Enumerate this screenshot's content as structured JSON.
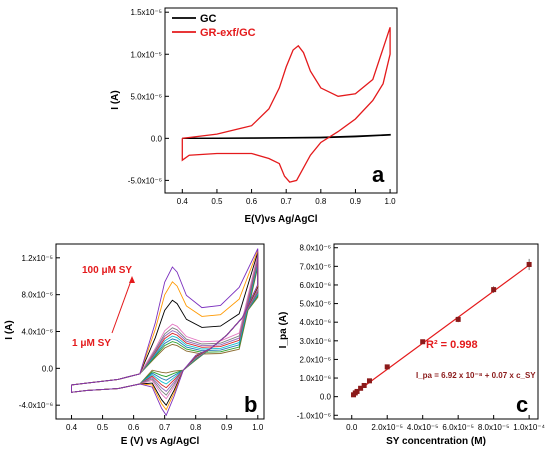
{
  "chart_data": [
    {
      "id": "a",
      "type": "line",
      "panel_label": "a",
      "xlabel": "E(V)vs Ag/AgCl",
      "ylabel": "I (A)",
      "xlim": [
        0.35,
        1.02
      ],
      "ylim": [
        -6.5e-06,
        1.55e-05
      ],
      "xticks": [
        0.4,
        0.5,
        0.6,
        0.7,
        0.8,
        0.9,
        1.0
      ],
      "xtick_labels": [
        "0.4",
        "0.5",
        "0.6",
        "0.7",
        "0.8",
        "0.9",
        "1.0"
      ],
      "yticks": [
        -5e-06,
        0,
        5e-06,
        1e-05,
        1.5e-05
      ],
      "ytick_labels": [
        "-5.0x10⁻⁶",
        "0.0",
        "5.0x10⁻⁶",
        "1.0x10⁻⁵",
        "1.5x10⁻⁵"
      ],
      "legend_position": "top-left",
      "series": [
        {
          "name": "GC",
          "color": "#000000",
          "x": [
            0.4,
            0.5,
            0.6,
            0.7,
            0.8,
            0.9,
            1.0,
            1.0,
            0.9,
            0.8,
            0.7,
            0.6,
            0.5,
            0.4
          ],
          "y": [
            0.0,
            2e-08,
            5e-08,
            8e-08,
            1.2e-07,
            2.5e-07,
            4.5e-07,
            4e-07,
            2e-07,
            8e-08,
            4e-08,
            2e-08,
            0.0,
            0.0
          ]
        },
        {
          "name": "GR-exf/GC",
          "color": "#e41a1c",
          "x": [
            0.4,
            0.42,
            0.5,
            0.6,
            0.65,
            0.68,
            0.7,
            0.72,
            0.735,
            0.75,
            0.77,
            0.8,
            0.85,
            0.9,
            0.95,
            1.0,
            1.0,
            0.98,
            0.95,
            0.9,
            0.85,
            0.8,
            0.77,
            0.75,
            0.73,
            0.71,
            0.695,
            0.68,
            0.65,
            0.6,
            0.5,
            0.42,
            0.4,
            0.4
          ],
          "y": [
            0.0,
            1e-07,
            5e-07,
            1.5e-06,
            3.5e-06,
            6e-06,
            8.5e-06,
            1.05e-05,
            1.1e-05,
            1.02e-05,
            8e-06,
            6e-06,
            5e-06,
            5.3e-06,
            7e-06,
            1.32e-05,
            1e-05,
            6.5e-06,
            4.5e-06,
            2.3e-06,
            8e-07,
            -5e-07,
            -2e-06,
            -3.5e-06,
            -5e-06,
            -5.2e-06,
            -4.5e-06,
            -3e-06,
            -2.4e-06,
            -1.8e-06,
            -1.8e-06,
            -2e-06,
            -2.6e-06,
            0.0
          ]
        }
      ]
    },
    {
      "id": "b",
      "type": "line",
      "panel_label": "b",
      "xlabel": "E (V) vs Ag/AgCl",
      "ylabel": "I (A)",
      "xlim": [
        0.35,
        1.02
      ],
      "ylim": [
        -5.5e-06,
        1.35e-05
      ],
      "xticks": [
        0.4,
        0.5,
        0.6,
        0.7,
        0.8,
        0.9,
        1.0
      ],
      "xtick_labels": [
        "0.4",
        "0.5",
        "0.6",
        "0.7",
        "0.8",
        "0.9",
        "1.0"
      ],
      "yticks": [
        -4e-06,
        0,
        4e-06,
        8e-06,
        1.2e-05
      ],
      "ytick_labels": [
        "-4.0x10⁻⁶",
        "0.0",
        "4.0x10⁻⁶",
        "8.0x10⁻⁶",
        "1.2x10⁻⁵"
      ],
      "annotations": [
        {
          "text": "100 μM SY",
          "color": "#e41a1c"
        },
        {
          "text": "1 μM SY",
          "color": "#e41a1c"
        }
      ],
      "series": [
        {
          "color": "#8c6d31",
          "peak_anodic": 2.6e-06,
          "peak_cathodic": -5e-07
        },
        {
          "color": "#2ca02c",
          "peak_anodic": 2.9e-06,
          "peak_cathodic": -9e-07
        },
        {
          "color": "#1f77b4",
          "peak_anodic": 3.2e-06,
          "peak_cathodic": -1.3e-06
        },
        {
          "color": "#17becf",
          "peak_anodic": 3.5e-06,
          "peak_cathodic": -1.7e-06
        },
        {
          "color": "#d62728",
          "peak_anodic": 3.8e-06,
          "peak_cathodic": -2.1e-06
        },
        {
          "color": "#9467bd",
          "peak_anodic": 4.1e-06,
          "peak_cathodic": -2.5e-06
        },
        {
          "color": "#7f7f7f",
          "peak_anodic": 4.4e-06,
          "peak_cathodic": -2.9e-06
        },
        {
          "color": "#e377c2",
          "peak_anodic": 4.8e-06,
          "peak_cathodic": -3.3e-06
        },
        {
          "color": "#000000",
          "peak_anodic": 7.4e-06,
          "peak_cathodic": -4e-06
        },
        {
          "color": "#ff9900",
          "peak_anodic": 9.4e-06,
          "peak_cathodic": -4.5e-06
        },
        {
          "color": "#7b2fbf",
          "peak_anodic": 1.1e-05,
          "peak_cathodic": -5.1e-06
        }
      ]
    },
    {
      "id": "c",
      "type": "scatter",
      "panel_label": "c",
      "xlabel": "SY concentration (M)",
      "ylabel": "I_pa (A)",
      "xlim": [
        -1e-05,
        0.000105
      ],
      "ylim": [
        -1.2e-06,
        8.2e-06
      ],
      "xticks": [
        0,
        2e-05,
        4e-05,
        6e-05,
        8e-05,
        0.0001
      ],
      "xtick_labels": [
        "0.0",
        "2.0x10⁻⁵",
        "4.0x10⁻⁵",
        "6.0x10⁻⁵",
        "8.0x10⁻⁵",
        "1.0x10⁻⁴"
      ],
      "yticks": [
        -1e-06,
        0,
        1e-06,
        2e-06,
        3e-06,
        4e-06,
        5e-06,
        6e-06,
        7e-06,
        8e-06
      ],
      "ytick_labels": [
        "-1.0x10⁻⁶",
        "0.0",
        "1.0x10⁻⁶",
        "2.0x10⁻⁶",
        "3.0x10⁻⁶",
        "4.0x10⁻⁶",
        "5.0x10⁻⁶",
        "6.0x10⁻⁶",
        "7.0x10⁻⁶",
        "8.0x10⁻⁶"
      ],
      "r2_text": "R² = 0.998",
      "equation_text": "I_pa = 6.92 x 10⁻⁸ + 0.07 x c_SY",
      "fit": {
        "intercept": 6.92e-08,
        "slope": 0.07,
        "color": "#e41a1c"
      },
      "marker_color": "#8b1a1a",
      "points": {
        "x": [
          1e-06,
          2e-06,
          3e-06,
          5e-06,
          7e-06,
          1e-05,
          2e-05,
          4e-05,
          6e-05,
          8e-05,
          0.0001
        ],
        "y": [
          1e-07,
          2e-07,
          2.8e-07,
          4.5e-07,
          6e-07,
          8.5e-07,
          1.6e-06,
          2.95e-06,
          4.15e-06,
          5.75e-06,
          7.1e-06
        ],
        "err": [
          5e-08,
          5e-08,
          5e-08,
          5e-08,
          5e-08,
          5e-08,
          8e-08,
          1e-07,
          1.5e-07,
          1.8e-07,
          3e-07
        ]
      }
    }
  ]
}
